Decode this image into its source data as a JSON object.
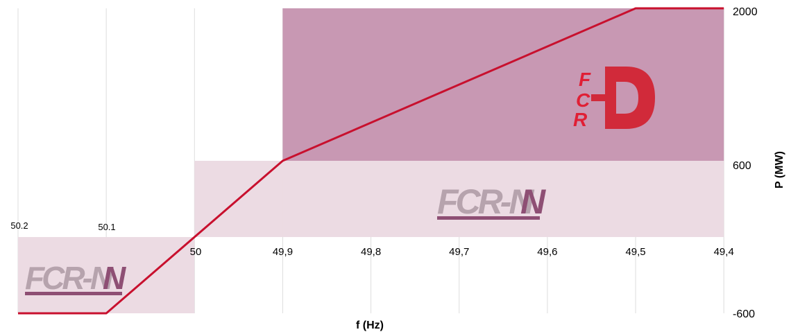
{
  "chart_data": {
    "type": "line",
    "x_direction": "descending",
    "xlabel": "f (Hz)",
    "ylabel": "P (MW)",
    "x_ticks": [
      "50.2",
      "50.1",
      "50",
      "49,9",
      "49,8",
      "49,7",
      "49,6",
      "49,5",
      "49,4"
    ],
    "x_tick_values": [
      50.2,
      50.1,
      50.0,
      49.9,
      49.8,
      49.7,
      49.6,
      49.5,
      49.4
    ],
    "y_ticks": [
      "2000",
      "600",
      "-600"
    ],
    "y_tick_values": [
      2000,
      600,
      -600
    ],
    "xlim": [
      50.2,
      49.4
    ],
    "grid": "vertical",
    "series": [
      {
        "x": [
          50.2,
          50.1,
          49.9,
          49.5,
          49.4
        ],
        "y": [
          -600,
          -600,
          600,
          2000,
          2000
        ],
        "color": "#c8102e"
      }
    ],
    "regions": [
      {
        "label": "FCR-N",
        "x_range": [
          50.2,
          50.0
        ],
        "y_range": [
          -600,
          0
        ],
        "color": "#ecdbe3"
      },
      {
        "label": "FCR-N",
        "x_range": [
          50.0,
          49.4
        ],
        "y_range": [
          0,
          600
        ],
        "color": "#ecdbe3"
      },
      {
        "label": "FCR-D",
        "x_range": [
          49.9,
          49.4
        ],
        "y_range": [
          600,
          2000
        ],
        "color": "#c898b3"
      }
    ],
    "logos": {
      "fcr_n_text": "FCR-N",
      "fcr_n_color_light": "#b6a3ad",
      "fcr_n_color_dark": "#8e4f74",
      "fcr_d_letters": [
        "F",
        "C",
        "R"
      ],
      "fcr_d_big": "D",
      "fcr_d_color": "#d12a3a"
    },
    "colors": {
      "line": "#c8102e",
      "grid": "#dddddd",
      "fcr_n_fill": "#ecdbe3",
      "fcr_d_fill": "#c898b3"
    }
  }
}
